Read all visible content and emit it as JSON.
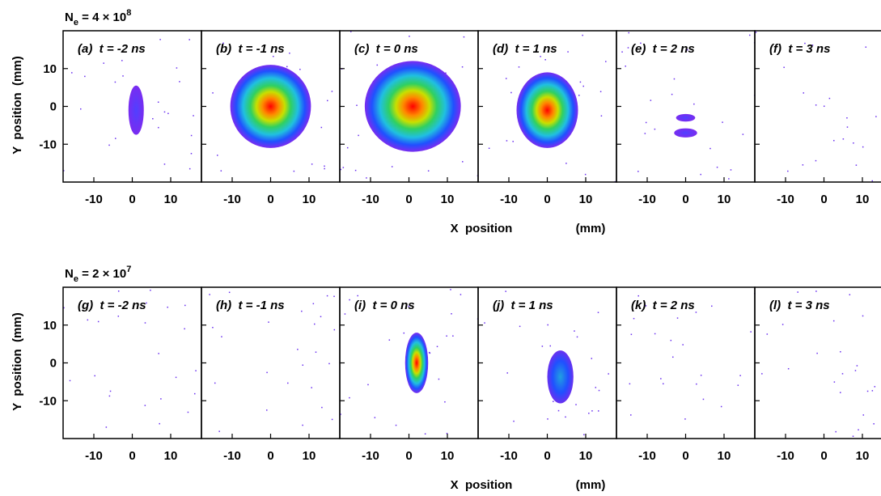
{
  "figure": {
    "x_label": "X  position",
    "x_unit": "(mm)",
    "y_label": "Y  position  (mm)",
    "xlim": [
      -18,
      18
    ],
    "ylim": [
      -20,
      20
    ],
    "xticks": [
      -10,
      0,
      10
    ],
    "yticks": [
      -10,
      0,
      10
    ],
    "rows": [
      {
        "title": {
          "base": "N",
          "sub": "e",
          "text": " = 4 × 10",
          "sup": "8"
        },
        "panels": [
          "(a)  t = -2 ns",
          "(b)  t = -1 ns",
          "(c)  t = 0 ns",
          "(d)  t = 1 ns",
          "(e)  t = 2 ns",
          "(f)  t = 3 ns"
        ]
      },
      {
        "title": {
          "base": "N",
          "sub": "e",
          "text": " = 2 × 10",
          "sup": "7"
        },
        "panels": [
          "(g)  t = -2 ns",
          "(h)  t = -1 ns",
          "(i)  t = 0 ns",
          "(j)  t = 1 ns",
          "(k)  t = 2 ns",
          "(l)  t = 3 ns"
        ]
      }
    ]
  }
}
